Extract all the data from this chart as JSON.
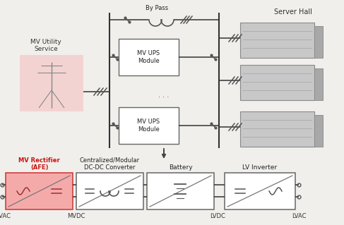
{
  "bg_color": "#f0efeb",
  "server_hall_label": "Server Hall",
  "bypass_label": "By Pass",
  "mv_utility_label": "MV Utility\nService",
  "mv_ups_label": "MV UPS\nModule",
  "bottom_labels": [
    "MV Rectifier\n(AFE)",
    "Centralized/Modular\nDC-DC Converter",
    "Battery",
    "LV Inverter"
  ],
  "bottom_label_colors": [
    "#cc1111",
    "#222222",
    "#222222",
    "#222222"
  ],
  "bus_labels": [
    "MVAC",
    "MVDC",
    "LVDC",
    "LVAC"
  ],
  "rectifier_fill": "#f5aaaa",
  "rectifier_edge": "#cc3333",
  "box_fill": "#ffffff",
  "box_edge": "#666666",
  "line_color": "#333333",
  "arrow_color": "#444444",
  "tower_bg": "#f5c8c8",
  "server_color": "#b8b8b8",
  "dots_text": ". . ."
}
